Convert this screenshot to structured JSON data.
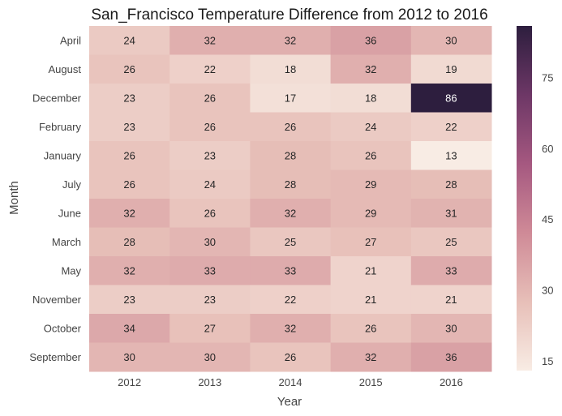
{
  "chart_data": {
    "type": "heatmap",
    "title": "San_Francisco Temperature Difference from 2012 to 2016",
    "xlabel": "Year",
    "ylabel": "Month",
    "x_categories": [
      "2012",
      "2013",
      "2014",
      "2015",
      "2016"
    ],
    "y_categories": [
      "April",
      "August",
      "December",
      "February",
      "January",
      "July",
      "June",
      "March",
      "May",
      "November",
      "October",
      "September"
    ],
    "values": [
      [
        24,
        32,
        32,
        36,
        30
      ],
      [
        26,
        22,
        18,
        32,
        19
      ],
      [
        23,
        26,
        17,
        18,
        86
      ],
      [
        23,
        26,
        26,
        24,
        22
      ],
      [
        26,
        23,
        28,
        26,
        13
      ],
      [
        26,
        24,
        28,
        29,
        28
      ],
      [
        32,
        26,
        32,
        29,
        31
      ],
      [
        28,
        30,
        25,
        27,
        25
      ],
      [
        32,
        33,
        33,
        21,
        33
      ],
      [
        23,
        23,
        22,
        21,
        21
      ],
      [
        34,
        27,
        32,
        26,
        30
      ],
      [
        30,
        30,
        26,
        32,
        36
      ]
    ],
    "colorbar": {
      "ticks": [
        "15",
        "30",
        "45",
        "60",
        "75"
      ],
      "vmin": 13,
      "vmax": 86,
      "colors": [
        "#f8ece4",
        "#e7bfb8",
        "#cf8a97",
        "#a55880",
        "#6d3766",
        "#2d1e3e"
      ]
    },
    "grid": false
  }
}
